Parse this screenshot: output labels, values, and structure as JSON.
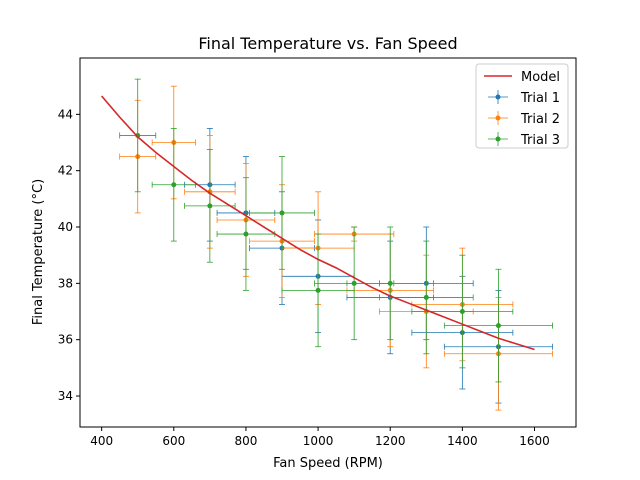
{
  "chart_data": {
    "type": "scatter",
    "title": "Final Temperature vs. Fan Speed",
    "xlabel": "Fan Speed (RPM)",
    "ylabel_prefix": "Final Temperature (",
    "ylabel_unit": "°C",
    "ylabel_suffix": ")",
    "xlim": [
      340,
      1715
    ],
    "ylim": [
      32.9,
      46.0
    ],
    "x_ticks": [
      400,
      600,
      800,
      1000,
      1200,
      1400,
      1600
    ],
    "y_ticks": [
      34,
      36,
      38,
      40,
      42,
      44
    ],
    "grid": false,
    "legend_position": "top-right",
    "model": {
      "name": "Model",
      "color": "#d62728",
      "x": [
        400,
        450,
        500,
        550,
        600,
        650,
        700,
        750,
        800,
        850,
        900,
        950,
        1000,
        1050,
        1100,
        1150,
        1200,
        1250,
        1300,
        1350,
        1400,
        1450,
        1500,
        1550,
        1600
      ],
      "y": [
        44.65,
        43.9,
        43.2,
        42.65,
        42.15,
        41.65,
        41.2,
        40.8,
        40.4,
        40.0,
        39.6,
        39.2,
        38.85,
        38.55,
        38.2,
        37.85,
        37.55,
        37.3,
        37.05,
        36.8,
        36.55,
        36.3,
        36.05,
        35.85,
        35.65
      ]
    },
    "series": [
      {
        "name": "Trial 1",
        "color": "#1f77b4",
        "points": [
          {
            "x": 700,
            "y": 41.5,
            "xerr": 70,
            "yerr": 2.0
          },
          {
            "x": 800,
            "y": 40.5,
            "xerr": 80,
            "yerr": 2.0
          },
          {
            "x": 900,
            "y": 39.25,
            "xerr": 90,
            "yerr": 2.0
          },
          {
            "x": 1000,
            "y": 38.25,
            "xerr": 100,
            "yerr": 2.0
          },
          {
            "x": 1200,
            "y": 37.5,
            "xerr": 120,
            "yerr": 2.0
          },
          {
            "x": 1300,
            "y": 38.0,
            "xerr": 130,
            "yerr": 2.0
          },
          {
            "x": 1400,
            "y": 36.25,
            "xerr": 140,
            "yerr": 2.0
          },
          {
            "x": 1500,
            "y": 35.75,
            "xerr": 150,
            "yerr": 2.0
          }
        ]
      },
      {
        "name": "Trial 2",
        "color": "#ff7f0e",
        "points": [
          {
            "x": 500,
            "y": 42.5,
            "xerr": 50,
            "yerr": 2.0
          },
          {
            "x": 600,
            "y": 43.0,
            "xerr": 60,
            "yerr": 2.0
          },
          {
            "x": 700,
            "y": 41.25,
            "xerr": 70,
            "yerr": 2.0
          },
          {
            "x": 800,
            "y": 40.25,
            "xerr": 80,
            "yerr": 2.0
          },
          {
            "x": 900,
            "y": 39.5,
            "xerr": 90,
            "yerr": 2.0
          },
          {
            "x": 1000,
            "y": 39.25,
            "xerr": 100,
            "yerr": 2.0
          },
          {
            "x": 1100,
            "y": 39.75,
            "xerr": 110,
            "yerr": 0.25
          },
          {
            "x": 1200,
            "y": 37.75,
            "xerr": 120,
            "yerr": 2.0
          },
          {
            "x": 1300,
            "y": 37.0,
            "xerr": 130,
            "yerr": 2.0
          },
          {
            "x": 1400,
            "y": 37.25,
            "xerr": 140,
            "yerr": 2.0
          },
          {
            "x": 1500,
            "y": 35.5,
            "xerr": 150,
            "yerr": 2.0
          }
        ]
      },
      {
        "name": "Trial 3",
        "color": "#2ca02c",
        "points": [
          {
            "x": 500,
            "y": 43.25,
            "xerr": 50,
            "yerr": 2.0
          },
          {
            "x": 600,
            "y": 41.5,
            "xerr": 60,
            "yerr": 2.0
          },
          {
            "x": 700,
            "y": 40.75,
            "xerr": 70,
            "yerr": 2.0
          },
          {
            "x": 800,
            "y": 39.75,
            "xerr": 80,
            "yerr": 2.0
          },
          {
            "x": 900,
            "y": 40.5,
            "xerr": 90,
            "yerr": 2.0
          },
          {
            "x": 1000,
            "y": 37.75,
            "xerr": 100,
            "yerr": 2.0
          },
          {
            "x": 1100,
            "y": 38.0,
            "xerr": 110,
            "yerr": 2.0
          },
          {
            "x": 1200,
            "y": 38.0,
            "xerr": 120,
            "yerr": 2.0
          },
          {
            "x": 1300,
            "y": 37.5,
            "xerr": 130,
            "yerr": 2.0
          },
          {
            "x": 1400,
            "y": 37.0,
            "xerr": 140,
            "yerr": 2.0
          },
          {
            "x": 1500,
            "y": 36.5,
            "xerr": 150,
            "yerr": 2.0
          }
        ]
      }
    ]
  }
}
